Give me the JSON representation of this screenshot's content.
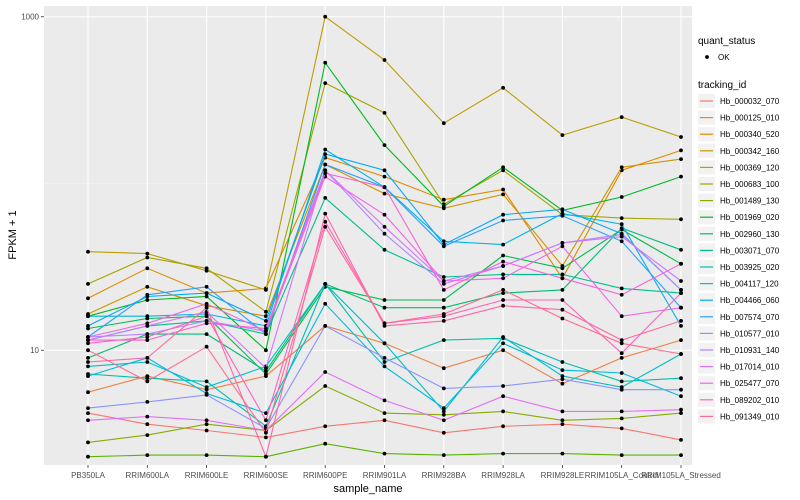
{
  "chart_data": {
    "type": "line",
    "xlabel": "sample_name",
    "ylabel": "FPKM + 1",
    "y_scale": "log10",
    "ylim": [
      2.05,
      1160
    ],
    "y_ticks": [
      10,
      1000
    ],
    "y_tick_labels": [
      "10",
      "1000"
    ],
    "grid": true,
    "background": "#EBEBEB",
    "legend_position": "right",
    "categories": [
      "PB350LA",
      "RRIM600LA",
      "RRIM600LE",
      "RRIM600SE",
      "RRIM600PE",
      "RRIM901LA",
      "RRIM928BA",
      "RRIM928LA",
      "RRIM928LE",
      "RRIM105LA_Control",
      "RRIM105LA_Stressed"
    ],
    "shape_legend": {
      "title": "quant_status",
      "entries": [
        {
          "label": "OK",
          "marker": "point"
        }
      ]
    },
    "color_legend_title": "tracking_id",
    "series": [
      {
        "name": "Hb_000032_070",
        "color": "#F8766D",
        "values": [
          4.2,
          3.6,
          3.3,
          3.0,
          3.5,
          3.8,
          3.2,
          3.5,
          3.6,
          3.4,
          2.9
        ]
      },
      {
        "name": "Hb_000125_010",
        "color": "#EE7F43",
        "values": [
          5.6,
          7.0,
          5.8,
          7.0,
          14.0,
          11.0,
          7.8,
          10.0,
          6.3,
          9.0,
          11.5
        ]
      },
      {
        "name": "Hb_000340_520",
        "color": "#DF8A00",
        "values": [
          20.5,
          31.0,
          22.0,
          23.5,
          143.0,
          110.0,
          80.0,
          92.0,
          27.0,
          120.0,
          158.0
        ]
      },
      {
        "name": "Hb_000342_160",
        "color": "#CF9400",
        "values": [
          16.5,
          24.0,
          18.5,
          16.0,
          130.0,
          87.0,
          71.0,
          86.0,
          32.0,
          125.0,
          140.0
        ]
      },
      {
        "name": "Hb_000369_120",
        "color": "#BB9D00",
        "values": [
          39.0,
          38.0,
          30.0,
          23.0,
          1000.0,
          550.0,
          230.0,
          375.0,
          195.0,
          250.0,
          190.0
        ]
      },
      {
        "name": "Hb_000683_100",
        "color": "#A3A500",
        "values": [
          25.0,
          36.0,
          31.0,
          17.0,
          400.0,
          265.0,
          75.0,
          120.0,
          65.0,
          62.0,
          61.0
        ]
      },
      {
        "name": "Hb_001489_130",
        "color": "#86AC00",
        "values": [
          2.8,
          3.1,
          3.6,
          3.3,
          6.1,
          4.2,
          4.1,
          4.3,
          3.8,
          3.9,
          4.2
        ]
      },
      {
        "name": "Hb_001969_020",
        "color": "#5BB300",
        "values": [
          2.3,
          2.35,
          2.35,
          2.3,
          2.75,
          2.4,
          2.35,
          2.4,
          2.4,
          2.35,
          2.35
        ]
      },
      {
        "name": "Hb_002960_130",
        "color": "#00B81F",
        "values": [
          16.0,
          20.0,
          21.0,
          10.0,
          530.0,
          170.0,
          73.0,
          125.0,
          69.0,
          83.0,
          110.0
        ]
      },
      {
        "name": "Hb_003071_070",
        "color": "#00BB4E",
        "values": [
          13.5,
          15.5,
          16.0,
          7.2,
          24.0,
          20.0,
          20.0,
          37.0,
          31.0,
          53.0,
          33.0
        ]
      },
      {
        "name": "Hb_003925_020",
        "color": "#00BD72",
        "values": [
          9.0,
          12.5,
          12.5,
          7.5,
          25.0,
          18.0,
          18.0,
          22.0,
          23.0,
          54.0,
          40.0
        ]
      },
      {
        "name": "Hb_004117_120",
        "color": "#00BF91",
        "values": [
          11.5,
          14.0,
          15.0,
          12.5,
          82.0,
          40.0,
          27.5,
          28.5,
          28.5,
          23.5,
          22.0
        ]
      },
      {
        "name": "Hb_004466_060",
        "color": "#00C0AC",
        "values": [
          7.2,
          6.8,
          6.5,
          3.5,
          25.0,
          8.5,
          11.5,
          11.8,
          8.5,
          6.5,
          6.8
        ]
      },
      {
        "name": "Hb_007574_070",
        "color": "#00BEC5",
        "values": [
          8.0,
          8.5,
          6.0,
          8.0,
          25.0,
          11.0,
          4.3,
          12.0,
          7.0,
          6.0,
          9.5
        ]
      },
      {
        "name": "Hb_010577_010",
        "color": "#00BADA",
        "values": [
          7.0,
          9.0,
          5.5,
          4.2,
          19.0,
          8.0,
          4.5,
          11.0,
          7.6,
          7.3,
          5.3
        ]
      },
      {
        "name": "Hb_010931_140",
        "color": "#00B3EB",
        "values": [
          16.0,
          16.0,
          16.5,
          14.0,
          160.0,
          95.0,
          45.0,
          43.0,
          66.0,
          57.0,
          14.0
        ]
      },
      {
        "name": "Hb_017014_010",
        "color": "#00A9F8",
        "values": [
          14.0,
          21.0,
          22.0,
          15.0,
          150.0,
          120.0,
          43.0,
          65.0,
          70.0,
          50.0,
          23.0
        ]
      },
      {
        "name": "Hb_025477_070",
        "color": "#29A0FF",
        "values": [
          12.0,
          21.5,
          24.0,
          12.5,
          130.0,
          95.0,
          42.0,
          60.0,
          64.0,
          45.0,
          18.0
        ]
      },
      {
        "name": "Hb_089202_010",
        "color": "#8B93FF",
        "values": [
          4.5,
          4.9,
          5.4,
          3.4,
          14.0,
          9.0,
          5.9,
          6.1,
          6.7,
          5.8,
          5.8
        ]
      },
      {
        "name": "Hb_010931_140",
        "color": "#B385FF",
        "values": [
          12.0,
          12.5,
          15.0,
          13.0,
          120.0,
          50.0,
          25.0,
          32.0,
          44.0,
          49.5,
          23.0
        ]
      },
      {
        "name": "Hb_017014_010",
        "color": "#CF78FF",
        "values": [
          11.5,
          14.0,
          17.0,
          7.8,
          120.0,
          55.0,
          26.0,
          32.0,
          44.0,
          48.0,
          26.0
        ]
      },
      {
        "name": "Hb_025477_070",
        "color": "#E36EF6",
        "values": [
          3.8,
          4.0,
          3.8,
          3.3,
          7.4,
          5.0,
          3.8,
          5.3,
          4.3,
          4.3,
          4.4
        ]
      },
      {
        "name": "Hb_089202_010",
        "color": "#F166E6",
        "values": [
          12.0,
          14.5,
          19.0,
          13.0,
          110.0,
          65.0,
          26.0,
          27.0,
          42.0,
          16.0,
          18.0
        ]
      },
      {
        "name": "Hb_091349_010",
        "color": "#FA62D4",
        "values": [
          11.5,
          11.5,
          14.5,
          13.5,
          115.0,
          95.0,
          23.0,
          34.0,
          27.0,
          21.5,
          33.0
        ]
      },
      {
        "name": "Hb_091349_010",
        "color": "#FF63BE",
        "values": [
          11.0,
          12.0,
          16.0,
          3.8,
          59.0,
          14.5,
          16.0,
          20.0,
          20.0,
          9.6,
          22.0
        ]
      },
      {
        "name": "Hb_091349_010",
        "color": "#FF67A6",
        "values": [
          8.5,
          9.0,
          18.0,
          2.3,
          66.0,
          14.0,
          15.0,
          18.5,
          17.5,
          11.5,
          15.0
        ]
      },
      {
        "name": "Hb_091349_010",
        "color": "#FF6C91",
        "values": [
          10.0,
          6.5,
          10.5,
          3.2,
          55.0,
          14.5,
          16.5,
          23.0,
          15.5,
          11.0,
          9.5
        ]
      }
    ],
    "legend_entries": [
      {
        "label": "Hb_000032_070",
        "color": "#F8766D"
      },
      {
        "label": "Hb_000125_010",
        "color": "#EE7F43"
      },
      {
        "label": "Hb_000340_520",
        "color": "#DF8A00"
      },
      {
        "label": "Hb_000342_160",
        "color": "#CF9400"
      },
      {
        "label": "Hb_000369_120",
        "color": "#BB9D00"
      },
      {
        "label": "Hb_000683_100",
        "color": "#A3A500"
      },
      {
        "label": "Hb_001489_130",
        "color": "#86AC00"
      },
      {
        "label": "Hb_001969_020",
        "color": "#00B81F"
      },
      {
        "label": "Hb_002960_130",
        "color": "#00BD72"
      },
      {
        "label": "Hb_003071_070",
        "color": "#00BF91"
      },
      {
        "label": "Hb_003925_020",
        "color": "#00C0AC"
      },
      {
        "label": "Hb_004117_120",
        "color": "#00BADA"
      },
      {
        "label": "Hb_004466_060",
        "color": "#00A9F8"
      },
      {
        "label": "Hb_007574_070",
        "color": "#29A0FF"
      },
      {
        "label": "Hb_010577_010",
        "color": "#8B93FF"
      },
      {
        "label": "Hb_010931_140",
        "color": "#B385FF"
      },
      {
        "label": "Hb_017014_010",
        "color": "#CF78FF"
      },
      {
        "label": "Hb_025477_070",
        "color": "#F166E6"
      },
      {
        "label": "Hb_089202_010",
        "color": "#FF63BE"
      },
      {
        "label": "Hb_091349_010",
        "color": "#FF6C91"
      }
    ]
  }
}
